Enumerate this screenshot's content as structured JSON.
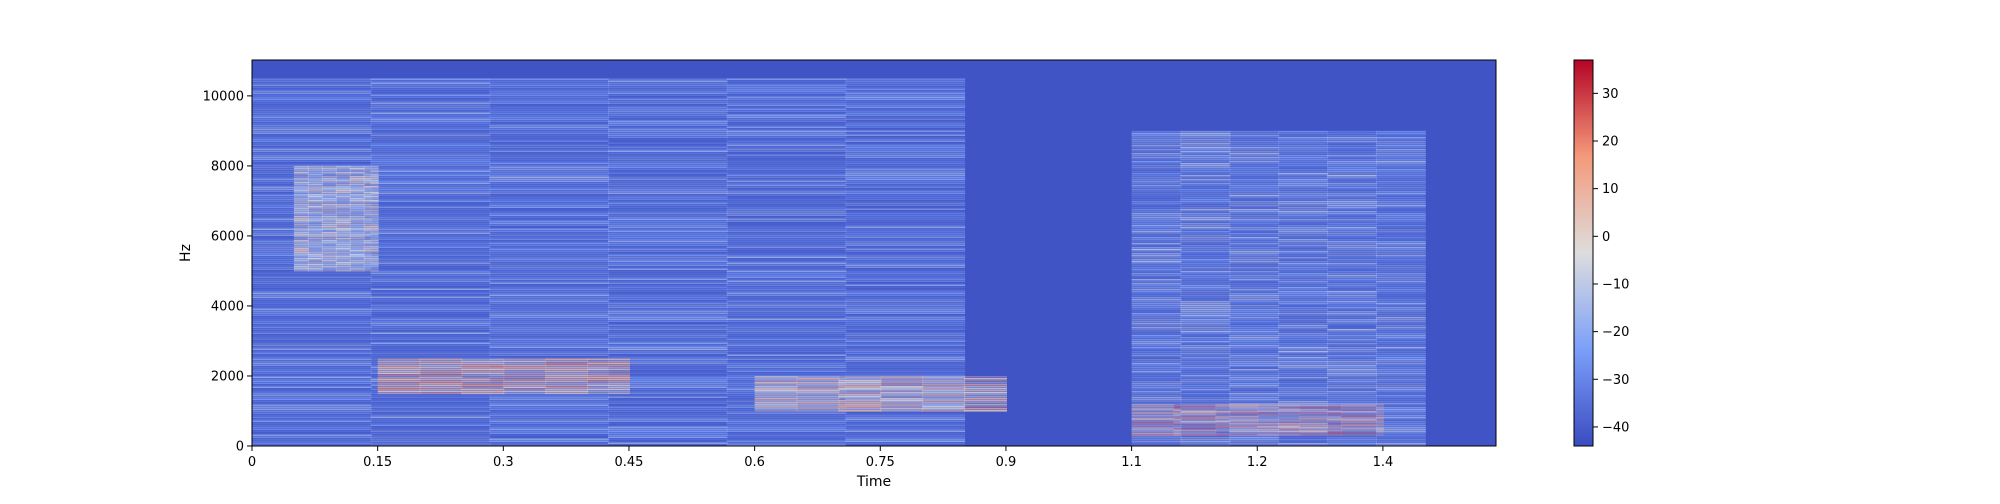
{
  "chart_data": {
    "type": "heatmap",
    "title": "",
    "xlabel": "Time",
    "ylabel": "Hz",
    "xlim": [
      0,
      1.485
    ],
    "ylim": [
      0,
      11025
    ],
    "x_ticks": [
      "0",
      "0.15",
      "0.3",
      "0.45",
      "0.6",
      "0.75",
      "0.9",
      "1.1",
      "1.2",
      "1.4"
    ],
    "x_tick_values": [
      0,
      0.15,
      0.3,
      0.45,
      0.6,
      0.75,
      0.9,
      1.05,
      1.2,
      1.35
    ],
    "y_ticks": [
      "0",
      "2000",
      "4000",
      "6000",
      "8000",
      "10000"
    ],
    "y_tick_values": [
      0,
      2000,
      4000,
      6000,
      8000,
      10000
    ],
    "colorbar": {
      "range": [
        -44,
        37
      ],
      "ticks": [
        "30",
        "20",
        "10",
        "0",
        "−10",
        "−20",
        "−30",
        "−40"
      ],
      "tick_values": [
        30,
        20,
        10,
        0,
        -10,
        -20,
        -30,
        -40
      ],
      "colormap": "coolwarm"
    },
    "energy_regions": [
      {
        "t_start": 0.0,
        "t_end": 0.85,
        "f_low": 0,
        "f_high": 10500,
        "level_db": -25
      },
      {
        "t_start": 0.05,
        "t_end": 0.15,
        "f_low": 5000,
        "f_high": 8000,
        "level_db": -5
      },
      {
        "t_start": 0.15,
        "t_end": 0.45,
        "f_low": 1500,
        "f_high": 2500,
        "level_db": 10
      },
      {
        "t_start": 0.6,
        "t_end": 0.9,
        "f_low": 1000,
        "f_high": 2000,
        "level_db": 5
      },
      {
        "t_start": 1.05,
        "t_end": 1.35,
        "f_low": 300,
        "f_high": 1200,
        "level_db": 20
      },
      {
        "t_start": 1.05,
        "t_end": 1.4,
        "f_low": 0,
        "f_high": 9000,
        "level_db": -20
      }
    ]
  }
}
